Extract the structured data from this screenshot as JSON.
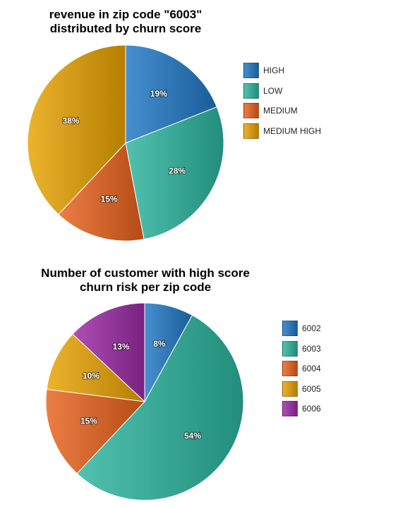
{
  "chart_data": [
    {
      "type": "pie",
      "title": "revenue in zip code \"6003\" distributed by churn score",
      "title_lines": [
        "revenue in zip code \"6003\"",
        "distributed by churn score"
      ],
      "categories": [
        "HIGH",
        "LOW",
        "MEDIUM",
        "MEDIUM HIGH"
      ],
      "values": [
        19,
        28,
        15,
        38
      ],
      "labels": [
        "19%",
        "28%",
        "15%",
        "38%"
      ],
      "colors": [
        "#1f77c4",
        "#2bb59e",
        "#e8621b",
        "#e8a200"
      ],
      "legend_position": "right"
    },
    {
      "type": "pie",
      "title": "Number of customer with high score churn risk per zip code",
      "title_lines": [
        "Number of customer with high score",
        "churn risk per zip code"
      ],
      "categories": [
        "6002",
        "6003",
        "6004",
        "6005",
        "6006"
      ],
      "values": [
        8,
        54,
        15,
        10,
        13
      ],
      "labels": [
        "8%",
        "54%",
        "15%",
        "10%",
        "13%"
      ],
      "colors": [
        "#1f77c4",
        "#2bb59e",
        "#e8621b",
        "#e8a200",
        "#9b2aa6"
      ],
      "legend_position": "right"
    }
  ]
}
